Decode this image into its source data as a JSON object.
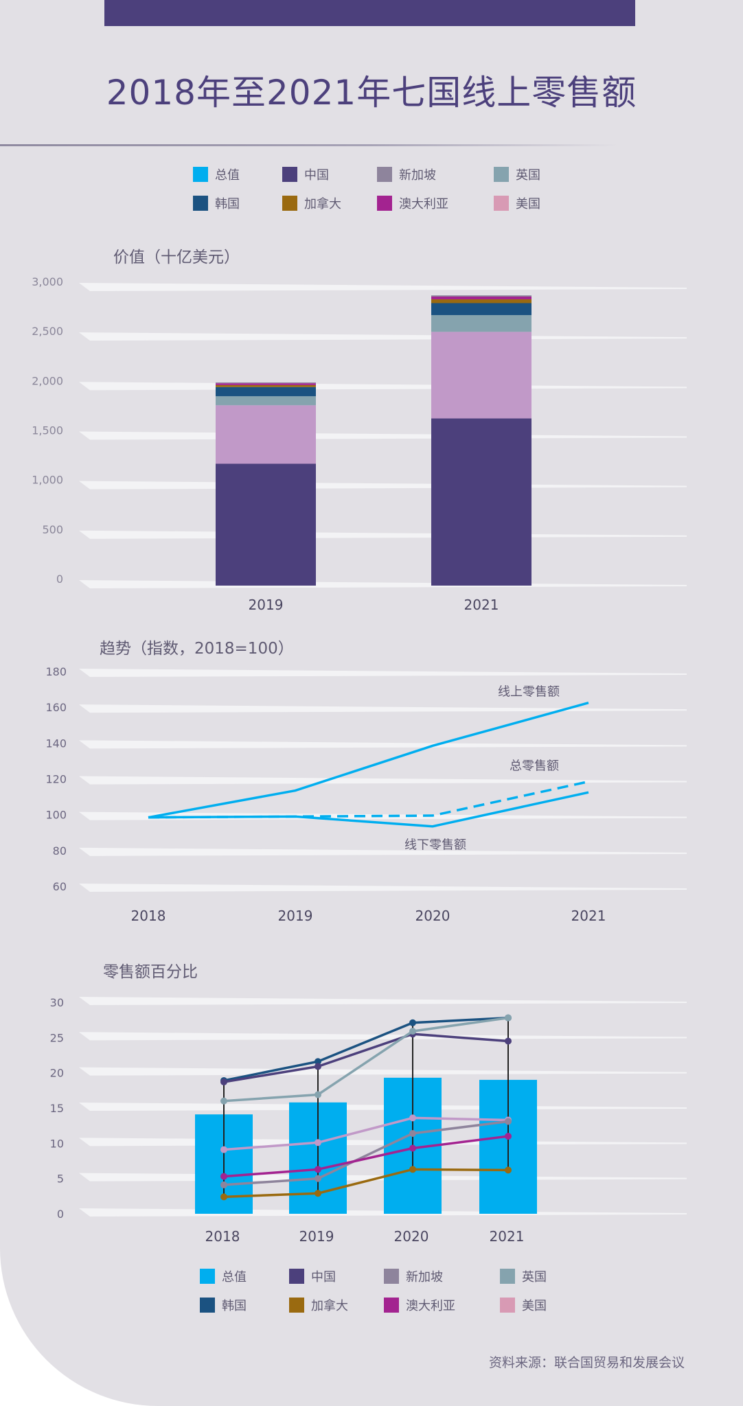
{
  "title": "2018年至2021年七国线上零售额",
  "legend": [
    {
      "label": "总值",
      "color": "#00aeef"
    },
    {
      "label": "中国",
      "color": "#4c407c"
    },
    {
      "label": "新加坡",
      "color": "#8e849c"
    },
    {
      "label": "英国",
      "color": "#85a3ae"
    },
    {
      "label": "韩国",
      "color": "#1b5281"
    },
    {
      "label": "加拿大",
      "color": "#9a6a10"
    },
    {
      "label": "澳大利亚",
      "color": "#a32390"
    },
    {
      "label": "美国",
      "color": "#d89ab4"
    }
  ],
  "source": "资料来源：联合国贸易和发展会议",
  "chart_data": [
    {
      "type": "bar",
      "stacked": true,
      "title": "价值（十亿美元）",
      "categories": [
        "2019",
        "2021"
      ],
      "y_ticks": [
        "0",
        "500",
        "1,000",
        "1,500",
        "2,000",
        "2,500",
        "3,000"
      ],
      "ylim": [
        0,
        3000
      ],
      "series": [
        {
          "name": "中国",
          "color": "#4c407c",
          "values": [
            1230,
            1687
          ]
        },
        {
          "name": "美国",
          "color": "#c199c8",
          "values": [
            590,
            874
          ]
        },
        {
          "name": "英国",
          "color": "#85a3ae",
          "values": [
            91,
            169
          ]
        },
        {
          "name": "韩国",
          "color": "#1b5281",
          "values": [
            93,
            121
          ]
        },
        {
          "name": "加拿大",
          "color": "#9a6a10",
          "values": [
            20,
            38
          ]
        },
        {
          "name": "澳大利亚",
          "color": "#a32390",
          "values": [
            18,
            28
          ]
        },
        {
          "name": "新加坡",
          "color": "#8e849c",
          "values": [
            8,
            12
          ]
        }
      ]
    },
    {
      "type": "line",
      "title": "趋势（指数，2018=100）",
      "x": [
        "2018",
        "2019",
        "2020",
        "2021"
      ],
      "y_ticks": [
        "60",
        "80",
        "100",
        "120",
        "140",
        "160",
        "180"
      ],
      "ylim": [
        60,
        180
      ],
      "series": [
        {
          "name": "线上零售额",
          "style": "solid",
          "color": "#00aeef",
          "values": [
            100,
            115,
            140,
            164
          ]
        },
        {
          "name": "总零售额",
          "style": "dashed",
          "color": "#00aeef",
          "values": [
            100,
            100.5,
            101,
            120
          ]
        },
        {
          "name": "线下零售额",
          "style": "solid",
          "color": "#00aeef",
          "values": [
            100,
            100.5,
            95,
            114
          ]
        }
      ]
    },
    {
      "type": "bar+line",
      "title": "零售额百分比",
      "categories": [
        "2018",
        "2019",
        "2020",
        "2021"
      ],
      "y_ticks": [
        "0",
        "5",
        "10",
        "15",
        "20",
        "25",
        "30"
      ],
      "ylim": [
        0,
        30
      ],
      "bars": {
        "name": "总值",
        "color": "#00aeef",
        "values": [
          14.1,
          15.8,
          19.3,
          19.0
        ]
      },
      "series": [
        {
          "name": "韩国",
          "color": "#1b5281",
          "values": [
            18.9,
            21.6,
            27.1,
            27.8
          ]
        },
        {
          "name": "中国",
          "color": "#4c407c",
          "values": [
            18.7,
            20.9,
            25.5,
            24.5
          ]
        },
        {
          "name": "英国",
          "color": "#85a3ae",
          "values": [
            16.0,
            16.9,
            25.9,
            27.8
          ]
        },
        {
          "name": "美国",
          "color": "#c199c8",
          "values": [
            9.1,
            10.1,
            13.6,
            13.3
          ]
        },
        {
          "name": "新加坡",
          "color": "#8e849c",
          "values": [
            4.1,
            5.0,
            11.4,
            13.1
          ]
        },
        {
          "name": "澳大利亚",
          "color": "#a32390",
          "values": [
            5.3,
            6.3,
            9.3,
            11.0
          ]
        },
        {
          "name": "加拿大",
          "color": "#9a6a10",
          "values": [
            2.4,
            2.9,
            6.3,
            6.2
          ]
        }
      ]
    }
  ]
}
